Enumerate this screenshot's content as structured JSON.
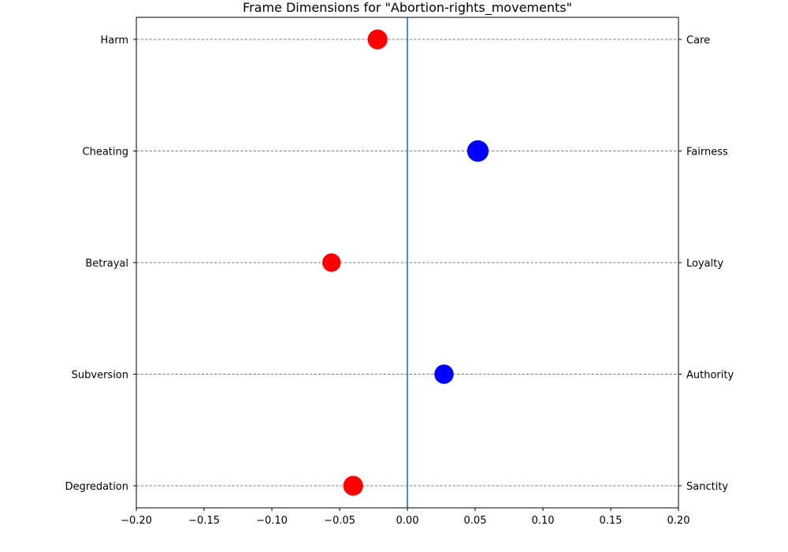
{
  "chart_data": {
    "type": "scatter",
    "title": "Frame Dimensions for \"Abortion-rights_movements\"",
    "xlabel": "",
    "ylabel": "",
    "xlim": [
      -0.2,
      0.2
    ],
    "x_ticks": [
      -0.2,
      -0.15,
      -0.1,
      -0.05,
      0.0,
      0.05,
      0.1,
      0.15,
      0.2
    ],
    "x_tick_labels": [
      "−0.20",
      "−0.15",
      "−0.10",
      "−0.05",
      "0.00",
      "0.05",
      "0.10",
      "0.15",
      "0.20"
    ],
    "left_labels": [
      "Harm",
      "Cheating",
      "Betrayal",
      "Subversion",
      "Degredation"
    ],
    "right_labels": [
      "Care",
      "Fairness",
      "Loyalty",
      "Authority",
      "Sanctity"
    ],
    "values": [
      -0.022,
      0.052,
      -0.056,
      0.027,
      -0.04
    ],
    "marker_weight": [
      0.6,
      0.9,
      0.35,
      0.5,
      0.6
    ],
    "colors": {
      "negative": "#ff0000",
      "positive": "#0000ff",
      "zero_line": "#1f77b4",
      "grid": "#808080",
      "axis": "#000000"
    },
    "zero_line": 0.0,
    "grid": "dashed horizontal"
  }
}
